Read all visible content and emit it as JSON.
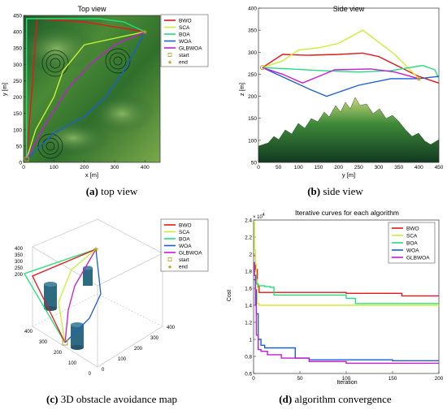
{
  "colors": {
    "BWO": "#e8161a",
    "SCA": "#c8f032",
    "BOA": "#1ee07a",
    "WOA": "#1a5fd6",
    "GLBWOA": "#c61ad6",
    "start": "#b5a21c",
    "end": "#b5a21c"
  },
  "chart_data": [
    {
      "type": "line",
      "title": "Top view",
      "xlabel": "x [m]",
      "ylabel": "y [m]",
      "xlim": [
        0,
        450
      ],
      "ylim": [
        0,
        450
      ],
      "xticks": [
        "0",
        "100",
        "200",
        "300",
        "400"
      ],
      "yticks": [
        "0",
        "50",
        "100",
        "150",
        "200",
        "250",
        "300",
        "350",
        "400",
        "450"
      ],
      "legend": {
        "placement": "top-right",
        "entries": [
          "BWO",
          "SCA",
          "BOA",
          "WOA",
          "GLBWOA",
          "start",
          "end"
        ]
      },
      "start": {
        "label": "start",
        "x": 10,
        "y": 10
      },
      "end": {
        "label": "end",
        "x": 400,
        "y": 400
      },
      "series": [
        {
          "name": "BWO",
          "points": [
            [
              10,
              10
            ],
            [
              30,
              250
            ],
            [
              35,
              320
            ],
            [
              45,
              440
            ],
            [
              200,
              430
            ],
            [
              400,
              400
            ]
          ]
        },
        {
          "name": "SCA",
          "points": [
            [
              10,
              10
            ],
            [
              40,
              100
            ],
            [
              100,
              200
            ],
            [
              130,
              280
            ],
            [
              200,
              360
            ],
            [
              400,
              400
            ]
          ]
        },
        {
          "name": "BOA",
          "points": [
            [
              10,
              10
            ],
            [
              10,
              440
            ],
            [
              250,
              440
            ],
            [
              330,
              430
            ],
            [
              400,
              400
            ]
          ]
        },
        {
          "name": "WOA",
          "points": [
            [
              10,
              10
            ],
            [
              100,
              90
            ],
            [
              200,
              140
            ],
            [
              270,
              200
            ],
            [
              330,
              280
            ],
            [
              400,
              400
            ]
          ]
        },
        {
          "name": "GLBWOA",
          "points": [
            [
              10,
              10
            ],
            [
              80,
              130
            ],
            [
              150,
              230
            ],
            [
              220,
              300
            ],
            [
              300,
              360
            ],
            [
              400,
              400
            ]
          ]
        }
      ]
    },
    {
      "type": "line",
      "title": "Side view",
      "xlabel": "y [m]",
      "ylabel": "z [m]",
      "xlim": [
        0,
        450
      ],
      "ylim": [
        50,
        400
      ],
      "xticks": [
        "0",
        "50",
        "100",
        "150",
        "200",
        "250",
        "300",
        "350",
        "400",
        "450"
      ],
      "yticks": [
        "50",
        "100",
        "150",
        "200",
        "250",
        "300",
        "350",
        "400"
      ],
      "legend": {
        "placement": "none",
        "entries": []
      },
      "series": [
        {
          "name": "BWO",
          "points": [
            [
              10,
              265
            ],
            [
              60,
              295
            ],
            [
              120,
              293
            ],
            [
              200,
              295
            ],
            [
              260,
              298
            ],
            [
              300,
              290
            ],
            [
              400,
              245
            ],
            [
              450,
              230
            ]
          ]
        },
        {
          "name": "SCA",
          "points": [
            [
              10,
              265
            ],
            [
              60,
              280
            ],
            [
              100,
              305
            ],
            [
              150,
              310
            ],
            [
              200,
              320
            ],
            [
              260,
              350
            ],
            [
              340,
              295
            ],
            [
              400,
              240
            ]
          ]
        },
        {
          "name": "BOA",
          "points": [
            [
              10,
              265
            ],
            [
              80,
              262
            ],
            [
              160,
              258
            ],
            [
              250,
              255
            ],
            [
              330,
              258
            ],
            [
              410,
              270
            ],
            [
              440,
              260
            ],
            [
              450,
              240
            ]
          ]
        },
        {
          "name": "WOA",
          "points": [
            [
              10,
              265
            ],
            [
              70,
              240
            ],
            [
              130,
              215
            ],
            [
              170,
              200
            ],
            [
              250,
              225
            ],
            [
              330,
              240
            ],
            [
              400,
              240
            ],
            [
              450,
              245
            ]
          ]
        },
        {
          "name": "GLBWOA",
          "points": [
            [
              10,
              265
            ],
            [
              60,
              250
            ],
            [
              110,
              230
            ],
            [
              150,
              245
            ],
            [
              190,
              260
            ],
            [
              280,
              262
            ],
            [
              340,
              255
            ],
            [
              400,
              240
            ]
          ]
        }
      ]
    },
    {
      "type": "line",
      "title": "",
      "xticks": [
        "0",
        "100",
        "200",
        "300",
        "400"
      ],
      "yticks": [
        "0",
        "100",
        "200",
        "300",
        "400"
      ],
      "zticks": [
        "200",
        "250",
        "300",
        "350",
        "400"
      ],
      "legend": {
        "placement": "top-right",
        "entries": [
          "BWO",
          "SCA",
          "BOA",
          "WOA",
          "GLBWOA",
          "start",
          "end"
        ]
      },
      "series": []
    },
    {
      "type": "line",
      "title": "Iterative curves for each algorithm",
      "xlabel": "Iteration",
      "ylabel": "Cost",
      "exponent": "× 10",
      "exponent_power": "4",
      "xlim": [
        0,
        200
      ],
      "ylim": [
        0.6,
        2.4
      ],
      "xticks": [
        "0",
        "50",
        "100",
        "150",
        "200"
      ],
      "yticks": [
        "0.6",
        "0.8",
        "1",
        "1.2",
        "1.4",
        "1.6",
        "1.8",
        "2",
        "2.2",
        "2.4"
      ],
      "legend": {
        "placement": "top-right",
        "entries": [
          "BWO",
          "SCA",
          "BOA",
          "WOA",
          "GLBWOA"
        ]
      },
      "series": [
        {
          "name": "BWO",
          "x": [
            0,
            2,
            4,
            6,
            10,
            100,
            160,
            200
          ],
          "y": [
            1.98,
            1.82,
            1.62,
            1.55,
            1.55,
            1.54,
            1.51,
            1.51
          ]
        },
        {
          "name": "SCA",
          "x": [
            0,
            1,
            2,
            3,
            4,
            6,
            200
          ],
          "y": [
            2.38,
            2.05,
            1.88,
            1.7,
            1.42,
            1.4,
            1.4
          ]
        },
        {
          "name": "BOA",
          "x": [
            0,
            3,
            5,
            8,
            12,
            18,
            22,
            100,
            110,
            200
          ],
          "y": [
            1.75,
            1.65,
            1.63,
            1.63,
            1.62,
            1.61,
            1.52,
            1.48,
            1.42,
            1.42
          ]
        },
        {
          "name": "WOA",
          "x": [
            0,
            2,
            3,
            5,
            8,
            12,
            20,
            40,
            45,
            60,
            150,
            200
          ],
          "y": [
            1.7,
            1.58,
            1.3,
            1.0,
            0.93,
            0.9,
            0.9,
            0.9,
            0.78,
            0.76,
            0.75,
            0.75
          ]
        },
        {
          "name": "GLBWOA",
          "x": [
            0,
            1,
            2,
            3,
            5,
            8,
            15,
            30,
            60,
            100,
            200
          ],
          "y": [
            1.9,
            1.75,
            1.4,
            1.05,
            0.88,
            0.86,
            0.82,
            0.78,
            0.74,
            0.72,
            0.72
          ]
        }
      ]
    }
  ],
  "captions": [
    {
      "label": "(a)",
      "text": "top view"
    },
    {
      "label": "(b)",
      "text": "side view"
    },
    {
      "label": "(c)",
      "text": "3D obstacle avoidance map"
    },
    {
      "label": "(d)",
      "text": "algorithm convergence"
    }
  ]
}
